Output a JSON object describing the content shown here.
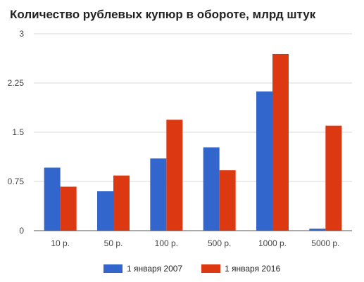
{
  "chart_data": {
    "type": "bar",
    "title": "Количество рублевых купюр в обороте, млрд штук",
    "categories": [
      "10 р.",
      "50 р.",
      "100 р.",
      "500 р.",
      "1000 р.",
      "5000 р."
    ],
    "series": [
      {
        "name": "1 января 2007",
        "color": "#3366cc",
        "values": [
          0.96,
          0.6,
          1.1,
          1.27,
          2.12,
          0.03
        ]
      },
      {
        "name": "1 января 2016",
        "color": "#dc3912",
        "values": [
          0.67,
          0.84,
          1.69,
          0.92,
          2.69,
          1.6
        ]
      }
    ],
    "ylim": [
      0,
      3
    ],
    "yticks": [
      "0",
      "0.75",
      "1.5",
      "2.25",
      "3"
    ],
    "ytick_values": [
      0,
      0.75,
      1.5,
      2.25,
      3
    ],
    "grid": true,
    "legend_position": "bottom"
  }
}
